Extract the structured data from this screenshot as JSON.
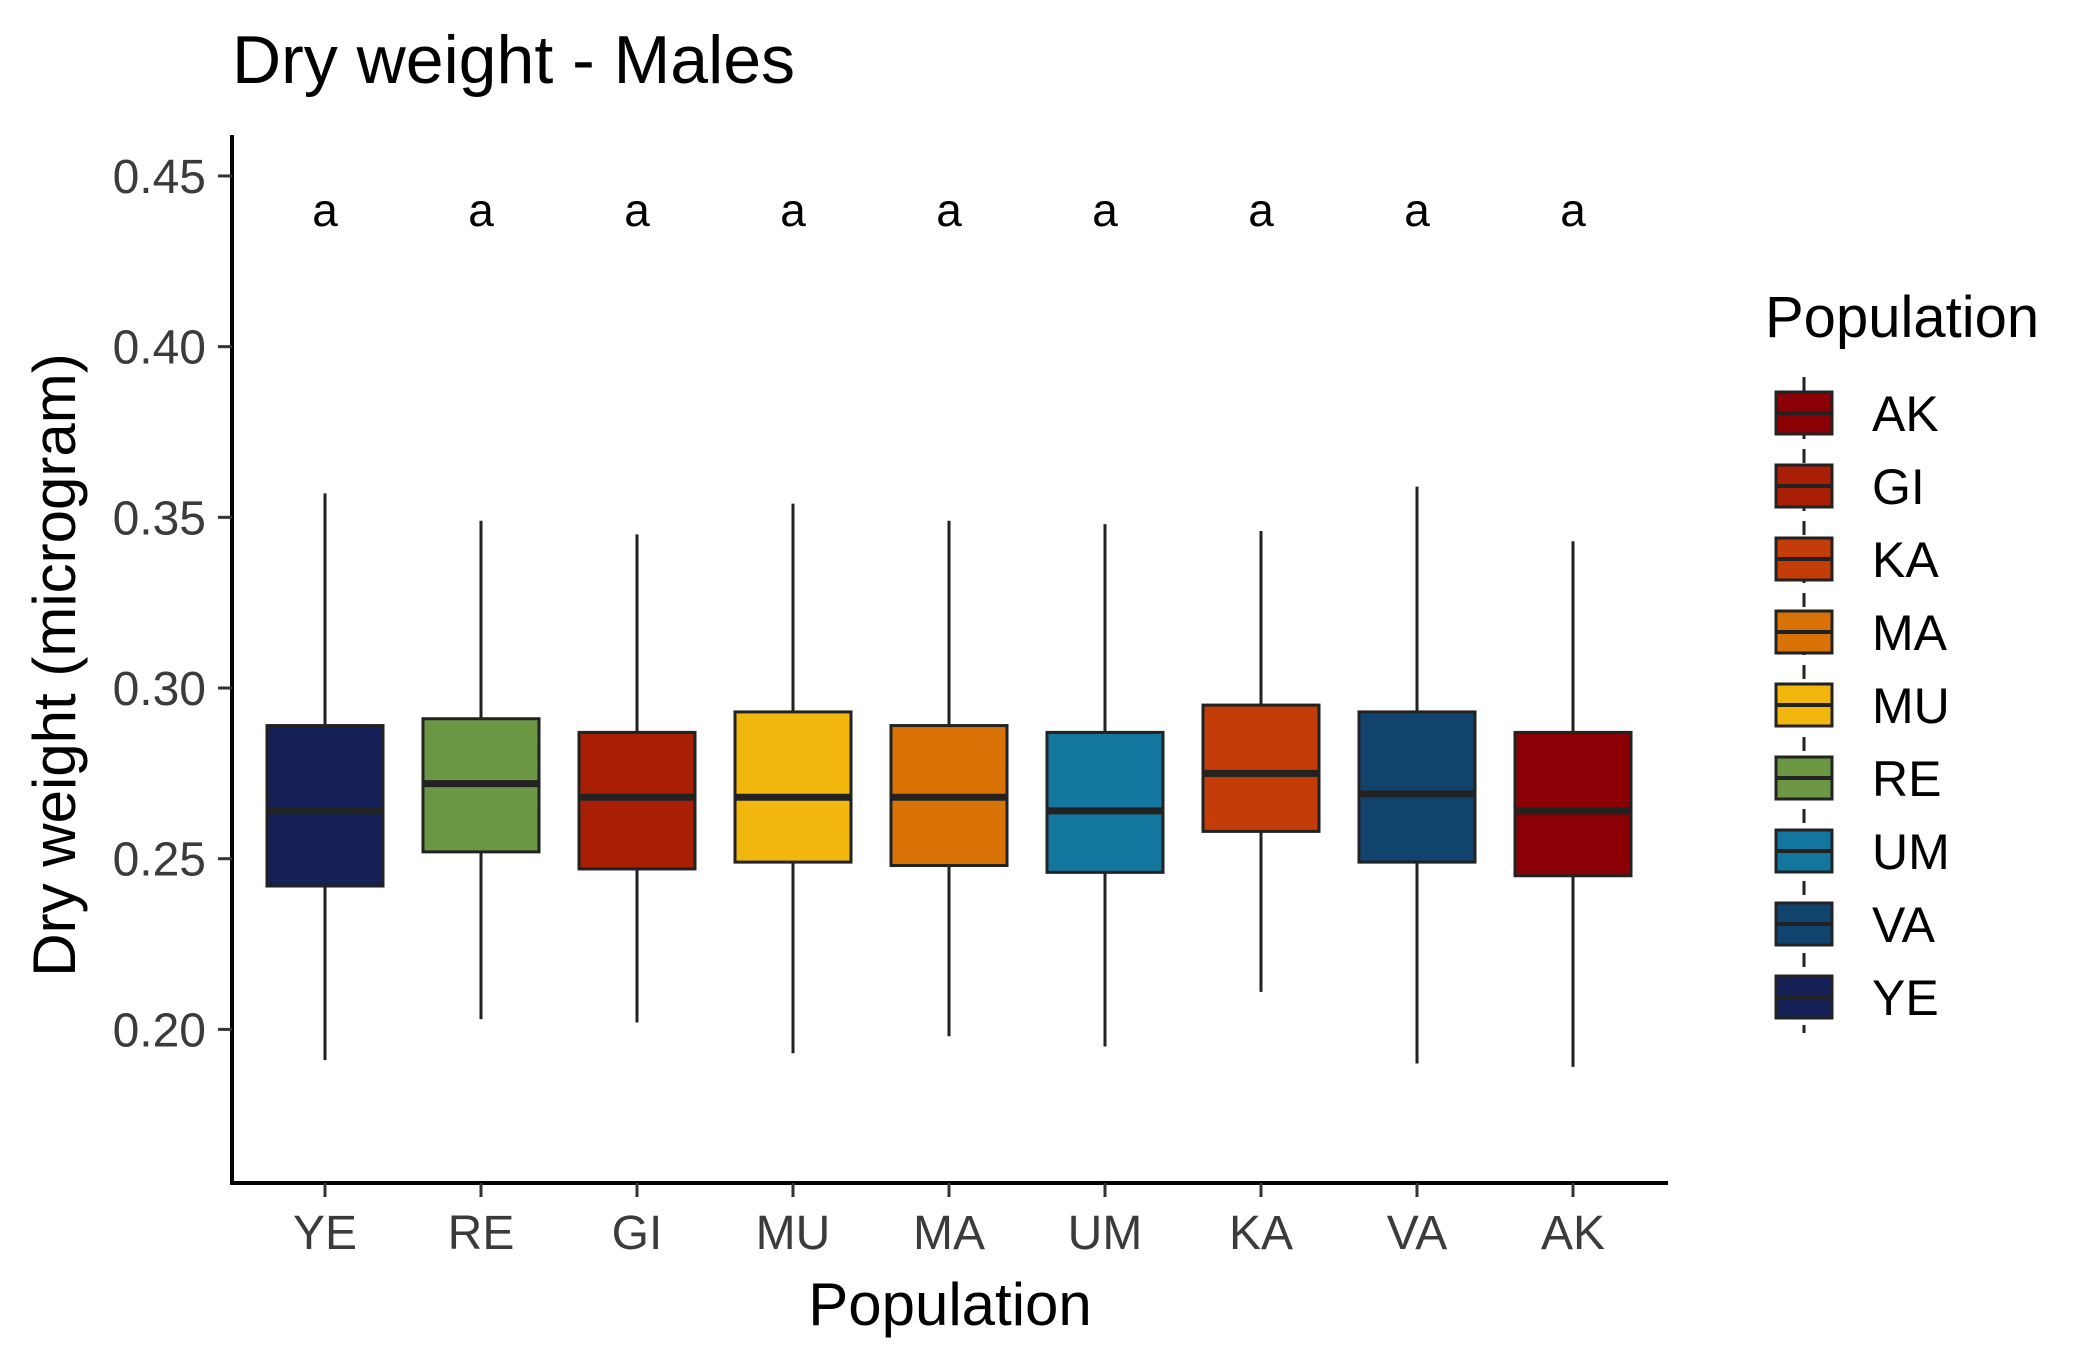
{
  "chart_data": {
    "type": "box",
    "title": "Dry weight - Males",
    "xlabel": "Population",
    "ylabel": "Dry weight (microgram)",
    "ylim": [
      0.155,
      0.462
    ],
    "yticks": [
      0.2,
      0.25,
      0.3,
      0.35,
      0.4,
      0.45
    ],
    "ytick_labels": [
      "0.20",
      "0.25",
      "0.30",
      "0.35",
      "0.40",
      "0.45"
    ],
    "categories": [
      "YE",
      "RE",
      "GI",
      "MU",
      "MA",
      "UM",
      "KA",
      "VA",
      "AK"
    ],
    "boxes": [
      {
        "category": "YE",
        "whisker_low": 0.191,
        "q1": 0.242,
        "median": 0.264,
        "q3": 0.289,
        "whisker_high": 0.357,
        "color": "#152057",
        "sig": "a"
      },
      {
        "category": "RE",
        "whisker_low": 0.203,
        "q1": 0.252,
        "median": 0.272,
        "q3": 0.291,
        "whisker_high": 0.349,
        "color": "#6b9644",
        "sig": "a"
      },
      {
        "category": "GI",
        "whisker_low": 0.202,
        "q1": 0.247,
        "median": 0.268,
        "q3": 0.287,
        "whisker_high": 0.345,
        "color": "#a81f06",
        "sig": "a"
      },
      {
        "category": "MU",
        "whisker_low": 0.193,
        "q1": 0.249,
        "median": 0.268,
        "q3": 0.293,
        "whisker_high": 0.354,
        "color": "#f1b70c",
        "sig": "a"
      },
      {
        "category": "MA",
        "whisker_low": 0.198,
        "q1": 0.248,
        "median": 0.268,
        "q3": 0.289,
        "whisker_high": 0.349,
        "color": "#da7307",
        "sig": "a"
      },
      {
        "category": "UM",
        "whisker_low": 0.195,
        "q1": 0.246,
        "median": 0.264,
        "q3": 0.287,
        "whisker_high": 0.348,
        "color": "#13769e",
        "sig": "a"
      },
      {
        "category": "KA",
        "whisker_low": 0.211,
        "q1": 0.258,
        "median": 0.275,
        "q3": 0.295,
        "whisker_high": 0.346,
        "color": "#c43c08",
        "sig": "a"
      },
      {
        "category": "VA",
        "whisker_low": 0.19,
        "q1": 0.249,
        "median": 0.269,
        "q3": 0.293,
        "whisker_high": 0.359,
        "color": "#10446f",
        "sig": "a"
      },
      {
        "category": "AK",
        "whisker_low": 0.189,
        "q1": 0.245,
        "median": 0.264,
        "q3": 0.287,
        "whisker_high": 0.343,
        "color": "#8b0005",
        "sig": "a"
      }
    ],
    "significance_level": 0.44,
    "legend": {
      "title": "Population",
      "position": "right",
      "items": [
        {
          "label": "AK",
          "color": "#8b0005"
        },
        {
          "label": "GI",
          "color": "#a81f06"
        },
        {
          "label": "KA",
          "color": "#c43c08"
        },
        {
          "label": "MA",
          "color": "#da7307"
        },
        {
          "label": "MU",
          "color": "#f1b70c"
        },
        {
          "label": "RE",
          "color": "#6b9644"
        },
        {
          "label": "UM",
          "color": "#13769e"
        },
        {
          "label": "VA",
          "color": "#10446f"
        },
        {
          "label": "YE",
          "color": "#152057"
        }
      ]
    },
    "grid": false
  }
}
